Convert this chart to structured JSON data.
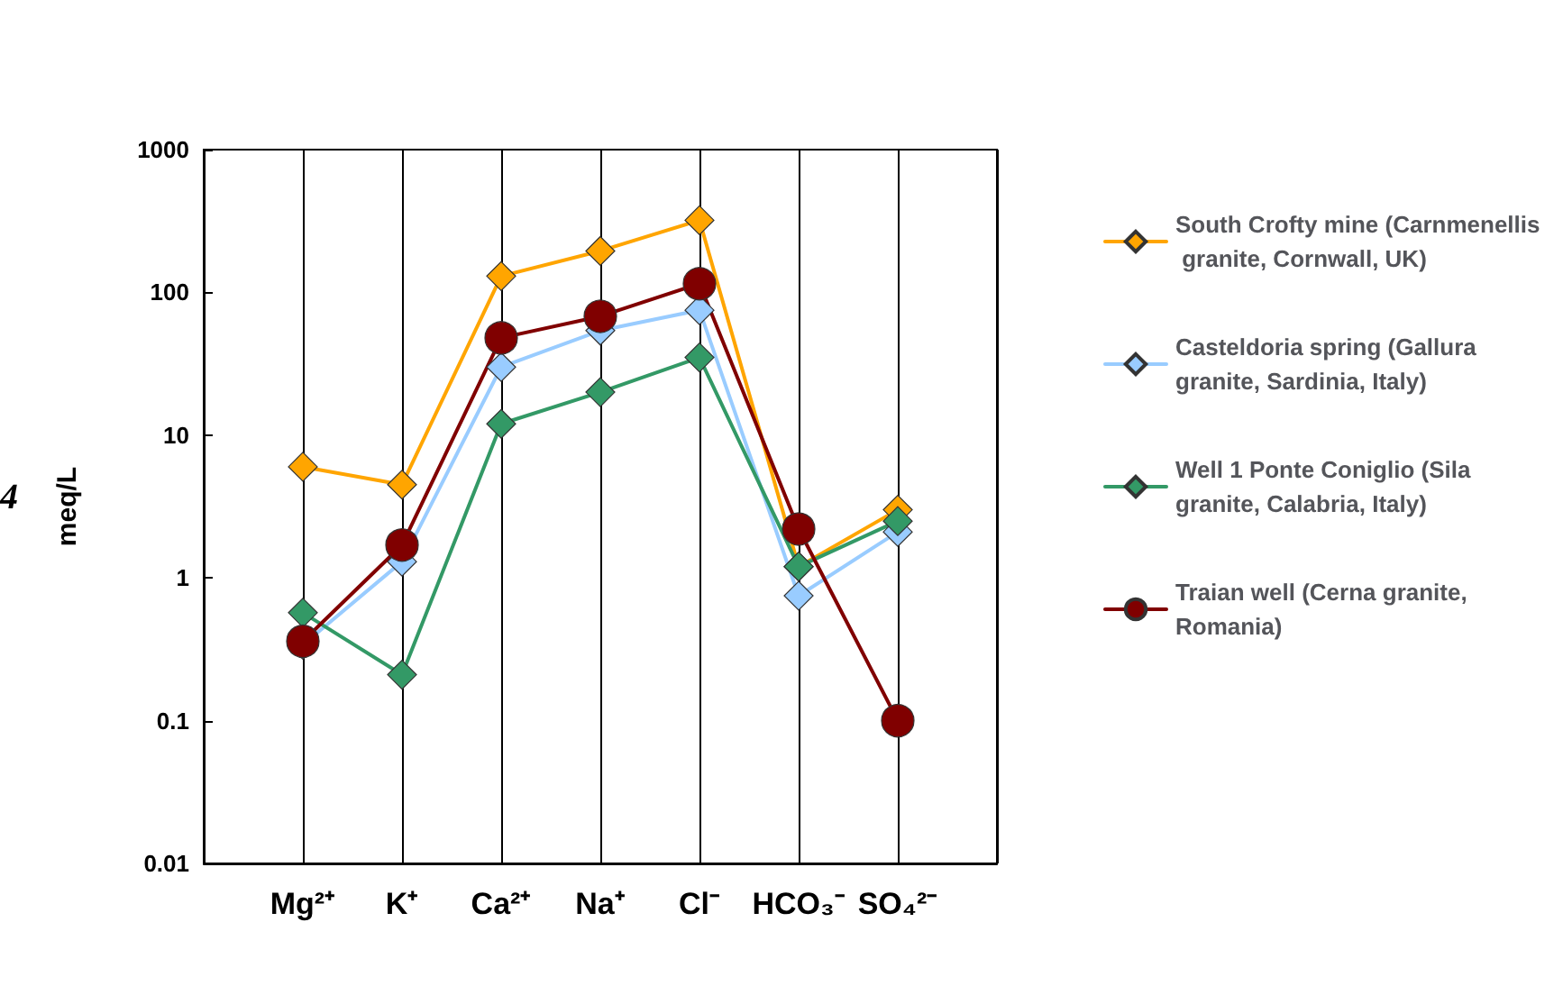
{
  "chart_data": {
    "type": "line",
    "ylabel": "meq/L",
    "categories": [
      "Mg²⁺",
      "K⁺",
      "Ca²⁺",
      "Na⁺",
      "Cl⁻",
      "HCO₃⁻",
      "SO₄²⁻"
    ],
    "series": [
      {
        "name": "South Crofty mine (Carnmenellis granite, Cornwall, UK)",
        "color": "#ffa500",
        "marker": "diamond",
        "values": [
          6,
          4.5,
          130,
          195,
          320,
          1.2,
          3
        ]
      },
      {
        "name": "Casteldoria spring (Gallura granite, Sardinia, Italy)",
        "color": "#99ccff",
        "marker": "diamond",
        "values": [
          0.34,
          1.3,
          30,
          54,
          75,
          0.75,
          2.1
        ]
      },
      {
        "name": "Well 1 Ponte Coniglio (Sila granite, Calabria, Italy)",
        "color": "#339966",
        "marker": "diamond",
        "values": [
          0.57,
          0.21,
          12,
          20,
          35,
          1.2,
          2.5
        ]
      },
      {
        "name": "Traian well (Cerna granite, Romania)",
        "color": "#800000",
        "marker": "circle",
        "values": [
          0.36,
          1.7,
          48,
          68,
          115,
          2.2,
          0.1
        ]
      }
    ],
    "log": true,
    "ylim": [
      0.01,
      1000
    ],
    "yticks": [
      0.01,
      0.1,
      1,
      10,
      100,
      1000
    ],
    "grid": "x",
    "legend": "right",
    "annotations": [
      "4"
    ]
  }
}
